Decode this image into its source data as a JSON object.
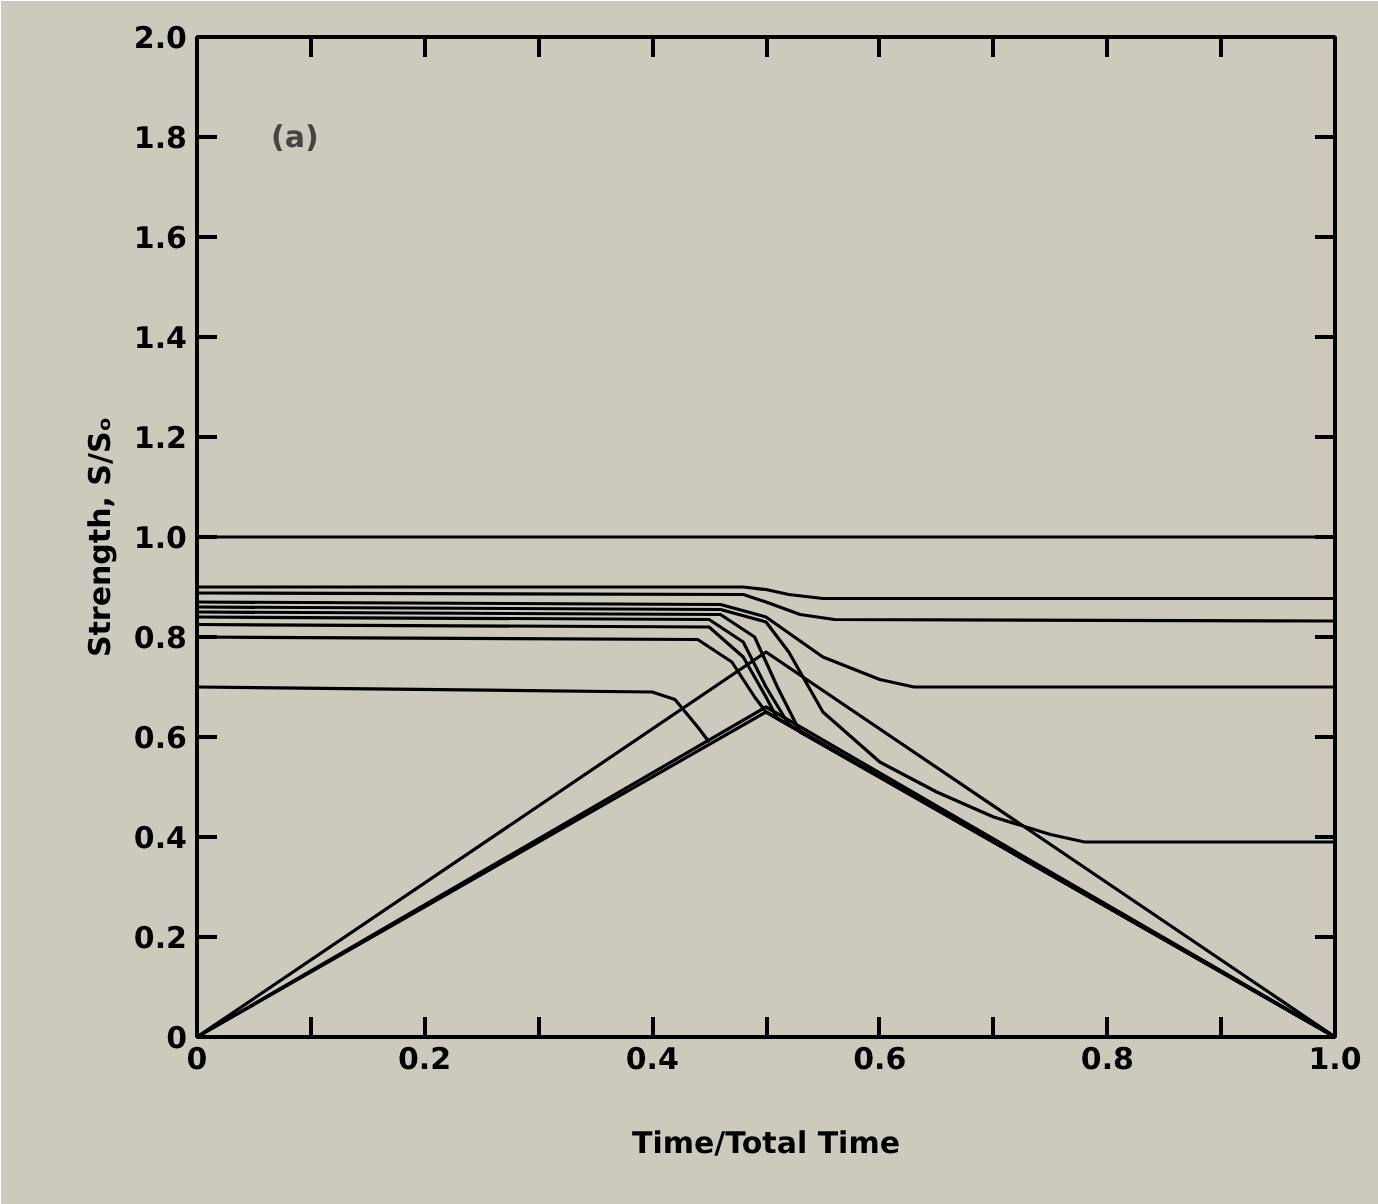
{
  "chart_data": {
    "type": "line",
    "xlabel": "Time/Total Time",
    "ylabel": "Strength, S/Sₒ",
    "annotations": [
      "(a)"
    ],
    "xlim": [
      0,
      1.0
    ],
    "ylim": [
      0,
      2.0
    ],
    "xticks": [
      0,
      {
        "value": 0.1,
        "label": null
      },
      0.2,
      {
        "value": 0.3,
        "label": null
      },
      0.4,
      {
        "value": 0.5,
        "label": null
      },
      0.6,
      {
        "value": 0.7,
        "label": null
      },
      0.8,
      {
        "value": 0.9,
        "label": null
      },
      {
        "value": 1.0,
        "label": "1.0"
      }
    ],
    "yticks": [
      0,
      0.2,
      0.4,
      0.6,
      0.8,
      {
        "value": 1.0,
        "label": "1.0"
      },
      1.2,
      1.4,
      1.6,
      1.8,
      {
        "value": 2.0,
        "label": "2.0"
      }
    ],
    "grid": false,
    "marker": "none",
    "line_style": "solid",
    "series": [
      {
        "color": "#000000",
        "x": [
          0,
          1.0
        ],
        "values": [
          1.0,
          1.0
        ]
      },
      {
        "color": "#000000",
        "x": [
          0,
          0.48,
          0.5,
          0.52,
          0.55,
          1.0
        ],
        "values": [
          0.9,
          0.9,
          0.895,
          0.885,
          0.877,
          0.877
        ]
      },
      {
        "color": "#000000",
        "x": [
          0,
          0.48,
          0.5,
          0.53,
          0.56,
          1.0
        ],
        "values": [
          0.888,
          0.885,
          0.87,
          0.845,
          0.835,
          0.832
        ]
      },
      {
        "color": "#000000",
        "x": [
          0,
          0.46,
          0.5,
          0.55,
          0.6,
          0.63,
          1.0
        ],
        "values": [
          0.87,
          0.865,
          0.84,
          0.76,
          0.715,
          0.7,
          0.7
        ]
      },
      {
        "color": "#000000",
        "x": [
          0,
          0.46,
          0.5,
          0.52,
          0.55,
          0.6,
          0.65,
          0.7,
          0.75,
          0.78,
          1.0
        ],
        "values": [
          0.86,
          0.855,
          0.83,
          0.77,
          0.65,
          0.55,
          0.49,
          0.44,
          0.405,
          0.39,
          0.39
        ]
      },
      {
        "color": "#000000",
        "x": [
          0,
          0.46,
          0.49,
          0.51,
          0.53,
          1.0
        ],
        "values": [
          0.85,
          0.845,
          0.8,
          0.7,
          0.61,
          0
        ]
      },
      {
        "color": "#000000",
        "x": [
          0,
          0.45,
          0.48,
          0.5,
          0.52,
          1.0
        ],
        "values": [
          0.84,
          0.835,
          0.79,
          0.7,
          0.625,
          0
        ]
      },
      {
        "color": "#000000",
        "x": [
          0,
          0.45,
          0.48,
          0.5,
          0.51,
          1.0
        ],
        "values": [
          0.825,
          0.82,
          0.76,
          0.68,
          0.637,
          0
        ]
      },
      {
        "color": "#000000",
        "x": [
          0,
          0.44,
          0.47,
          0.49,
          0.5,
          1.0
        ],
        "values": [
          0.8,
          0.795,
          0.75,
          0.68,
          0.65,
          0
        ]
      },
      {
        "color": "#000000",
        "x": [
          0,
          0.4,
          0.42,
          0.44,
          0.45
        ],
        "values": [
          0.7,
          0.69,
          0.675,
          0.62,
          0.59
        ]
      },
      {
        "color": "#000000",
        "x": [
          0,
          0.5,
          1.0
        ],
        "values": [
          0,
          0.77,
          0
        ]
      },
      {
        "color": "#000000",
        "x": [
          0,
          0.5,
          1.0
        ],
        "values": [
          0,
          0.66,
          0
        ]
      },
      {
        "color": "#000000",
        "x": [
          0,
          0.5,
          1.0
        ],
        "values": [
          0,
          0.65,
          0
        ]
      }
    ]
  }
}
